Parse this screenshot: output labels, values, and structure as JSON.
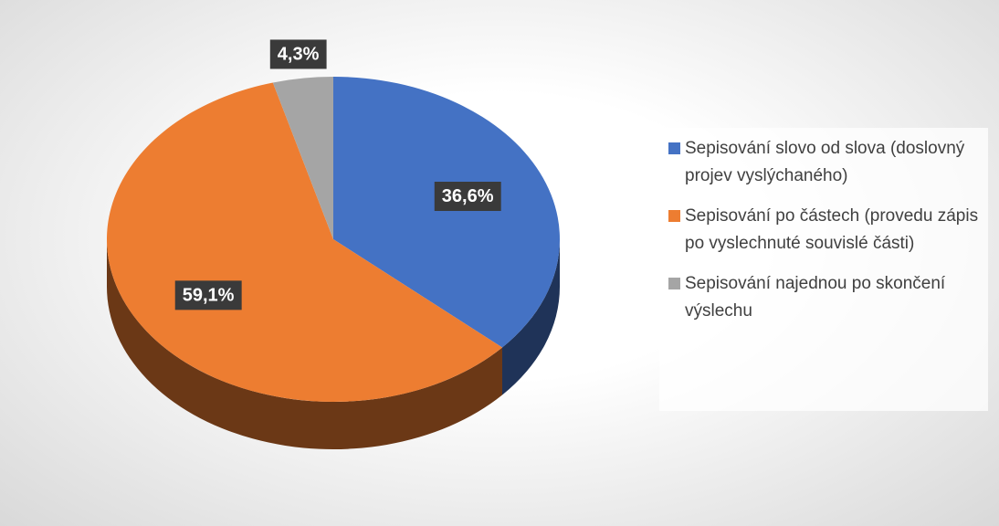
{
  "chart_data": {
    "type": "pie",
    "categories": [
      "Sepisování slovo od slova (doslovný projev vyslýchaného)",
      "Sepisování po částech (provedu zápis po vyslechnuté souvislé části)",
      "Sepisování najednou po skončení výslechu"
    ],
    "values": [
      36.6,
      59.1,
      4.3
    ],
    "value_labels": [
      "36,6%",
      "59,1%",
      "4,3%"
    ],
    "colors": [
      "#4472c4",
      "#ed7d31",
      "#a5a5a5"
    ],
    "legend": "right"
  }
}
